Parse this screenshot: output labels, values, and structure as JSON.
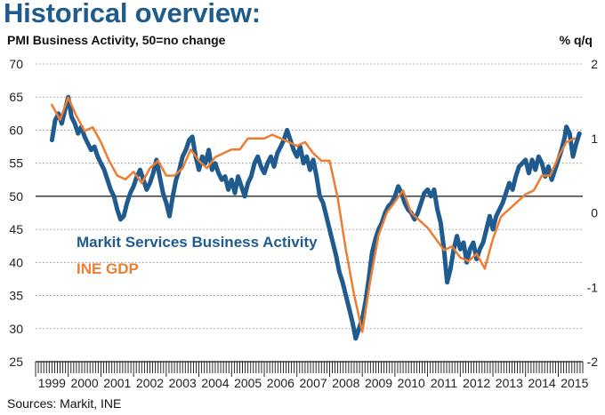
{
  "title": "Historical overview:",
  "subtitle": "PMI Business Activity, 50=no change",
  "right_axis_unit": "% q/q",
  "source": "Sources: Markit, INE",
  "colors": {
    "title": "#1f5b8e",
    "pmi": "#1f5b8e",
    "gdp": "#ed7d31"
  },
  "chart_data": {
    "type": "line",
    "title": "Historical overview:",
    "subtitle": "PMI Business Activity, 50=no change",
    "xlabel": "",
    "ylabel_left": "",
    "ylabel_right": "% q/q",
    "x_tick_labels": [
      "1999",
      "2000",
      "2001",
      "2002",
      "2003",
      "2004",
      "2005",
      "2006",
      "2007",
      "2008",
      "2009",
      "2010",
      "2011",
      "2012",
      "2013",
      "2014",
      "2015"
    ],
    "xlim": [
      1999.0,
      2015.75
    ],
    "ylim_left": [
      25,
      70
    ],
    "ylim_right": [
      -2,
      2
    ],
    "y_ticks_left": [
      25,
      30,
      35,
      40,
      45,
      50,
      55,
      60,
      65,
      70
    ],
    "y_ticks_right": [
      -2,
      -1,
      0,
      1,
      2
    ],
    "reference_line": {
      "axis": "left",
      "value": 50
    },
    "grid": "horizontal",
    "series": [
      {
        "name": "Markit Services Business Activity",
        "axis": "left",
        "points": [
          [
            1999.5,
            58.5
          ],
          [
            1999.6,
            61.5
          ],
          [
            1999.7,
            62.5
          ],
          [
            1999.8,
            61
          ],
          [
            1999.9,
            63
          ],
          [
            2000.0,
            65
          ],
          [
            2000.1,
            62
          ],
          [
            2000.2,
            61
          ],
          [
            2000.3,
            59.5
          ],
          [
            2000.4,
            60.5
          ],
          [
            2000.5,
            59
          ],
          [
            2000.6,
            58
          ],
          [
            2000.7,
            57
          ],
          [
            2000.8,
            57.5
          ],
          [
            2000.9,
            56
          ],
          [
            2001.0,
            55
          ],
          [
            2001.1,
            54
          ],
          [
            2001.2,
            52.5
          ],
          [
            2001.3,
            51
          ],
          [
            2001.4,
            50
          ],
          [
            2001.5,
            48
          ],
          [
            2001.6,
            46.5
          ],
          [
            2001.7,
            47
          ],
          [
            2001.8,
            49
          ],
          [
            2001.9,
            50.5
          ],
          [
            2002.0,
            51.5
          ],
          [
            2002.1,
            53
          ],
          [
            2002.2,
            54
          ],
          [
            2002.3,
            52.5
          ],
          [
            2002.4,
            51
          ],
          [
            2002.5,
            52
          ],
          [
            2002.6,
            53.5
          ],
          [
            2002.7,
            55.5
          ],
          [
            2002.8,
            53
          ],
          [
            2002.9,
            50.5
          ],
          [
            2003.0,
            49
          ],
          [
            2003.1,
            47
          ],
          [
            2003.2,
            50
          ],
          [
            2003.3,
            52.5
          ],
          [
            2003.4,
            54
          ],
          [
            2003.5,
            56
          ],
          [
            2003.6,
            57
          ],
          [
            2003.7,
            58.5
          ],
          [
            2003.8,
            59
          ],
          [
            2003.9,
            56
          ],
          [
            2004.0,
            54
          ],
          [
            2004.1,
            56
          ],
          [
            2004.2,
            55
          ],
          [
            2004.3,
            57
          ],
          [
            2004.4,
            54
          ],
          [
            2004.5,
            55
          ],
          [
            2004.6,
            53.5
          ],
          [
            2004.7,
            52.5
          ],
          [
            2004.8,
            53
          ],
          [
            2004.9,
            51
          ],
          [
            2005.0,
            52.5
          ],
          [
            2005.1,
            50.5
          ],
          [
            2005.2,
            53
          ],
          [
            2005.3,
            51.5
          ],
          [
            2005.4,
            50
          ],
          [
            2005.5,
            52
          ],
          [
            2005.6,
            53
          ],
          [
            2005.7,
            55
          ],
          [
            2005.8,
            56
          ],
          [
            2005.9,
            54.5
          ],
          [
            2006.0,
            53.5
          ],
          [
            2006.1,
            55
          ],
          [
            2006.2,
            56
          ],
          [
            2006.3,
            54.5
          ],
          [
            2006.4,
            56.5
          ],
          [
            2006.5,
            57.5
          ],
          [
            2006.6,
            58.5
          ],
          [
            2006.7,
            60
          ],
          [
            2006.8,
            58.5
          ],
          [
            2006.9,
            57
          ],
          [
            2007.0,
            56
          ],
          [
            2007.1,
            57.5
          ],
          [
            2007.2,
            55
          ],
          [
            2007.3,
            56
          ],
          [
            2007.4,
            54
          ],
          [
            2007.5,
            55.5
          ],
          [
            2007.6,
            53
          ],
          [
            2007.7,
            50
          ],
          [
            2007.8,
            49
          ],
          [
            2007.9,
            47
          ],
          [
            2008.0,
            45
          ],
          [
            2008.1,
            43
          ],
          [
            2008.2,
            41
          ],
          [
            2008.3,
            38.5
          ],
          [
            2008.4,
            37
          ],
          [
            2008.5,
            35
          ],
          [
            2008.6,
            33
          ],
          [
            2008.7,
            31
          ],
          [
            2008.8,
            28.5
          ],
          [
            2008.9,
            30
          ],
          [
            2009.0,
            31.5
          ],
          [
            2009.1,
            34
          ],
          [
            2009.2,
            37.5
          ],
          [
            2009.3,
            41.5
          ],
          [
            2009.4,
            43.5
          ],
          [
            2009.5,
            45
          ],
          [
            2009.6,
            46
          ],
          [
            2009.7,
            47.5
          ],
          [
            2009.8,
            48.5
          ],
          [
            2009.9,
            49
          ],
          [
            2010.0,
            50
          ],
          [
            2010.1,
            51.5
          ],
          [
            2010.2,
            50.5
          ],
          [
            2010.3,
            49
          ],
          [
            2010.4,
            48
          ],
          [
            2010.5,
            47.5
          ],
          [
            2010.6,
            46.5
          ],
          [
            2010.7,
            47.5
          ],
          [
            2010.8,
            49
          ],
          [
            2010.9,
            50.5
          ],
          [
            2011.0,
            51
          ],
          [
            2011.1,
            50
          ],
          [
            2011.2,
            51
          ],
          [
            2011.3,
            48
          ],
          [
            2011.4,
            46
          ],
          [
            2011.5,
            42
          ],
          [
            2011.6,
            37
          ],
          [
            2011.7,
            39
          ],
          [
            2011.8,
            42
          ],
          [
            2011.9,
            44
          ],
          [
            2012.0,
            42
          ],
          [
            2012.1,
            43
          ],
          [
            2012.2,
            40
          ],
          [
            2012.3,
            42
          ],
          [
            2012.4,
            43
          ],
          [
            2012.5,
            40.5
          ],
          [
            2012.6,
            42
          ],
          [
            2012.7,
            43
          ],
          [
            2012.8,
            45
          ],
          [
            2012.9,
            47
          ],
          [
            2013.0,
            45
          ],
          [
            2013.1,
            47
          ],
          [
            2013.2,
            48
          ],
          [
            2013.3,
            49
          ],
          [
            2013.4,
            50.5
          ],
          [
            2013.5,
            52
          ],
          [
            2013.6,
            51
          ],
          [
            2013.7,
            53
          ],
          [
            2013.8,
            54.5
          ],
          [
            2013.9,
            55
          ],
          [
            2014.0,
            55.5
          ],
          [
            2014.1,
            53.5
          ],
          [
            2014.2,
            55.5
          ],
          [
            2014.3,
            54
          ],
          [
            2014.4,
            56
          ],
          [
            2014.5,
            55
          ],
          [
            2014.6,
            53
          ],
          [
            2014.7,
            54.5
          ],
          [
            2014.8,
            52.5
          ],
          [
            2014.9,
            54
          ],
          [
            2015.0,
            55.5
          ],
          [
            2015.1,
            57
          ],
          [
            2015.2,
            59
          ],
          [
            2015.25,
            60.5
          ],
          [
            2015.35,
            59.5
          ],
          [
            2015.45,
            56
          ],
          [
            2015.55,
            58
          ],
          [
            2015.65,
            59.5
          ]
        ]
      },
      {
        "name": "INE GDP",
        "axis": "right",
        "points": [
          [
            1999.5,
            1.45
          ],
          [
            1999.75,
            1.25
          ],
          [
            2000.0,
            1.55
          ],
          [
            2000.25,
            1.3
          ],
          [
            2000.5,
            1.1
          ],
          [
            2000.75,
            1.15
          ],
          [
            2001.0,
            0.95
          ],
          [
            2001.25,
            0.7
          ],
          [
            2001.5,
            0.5
          ],
          [
            2001.75,
            0.45
          ],
          [
            2002.0,
            0.55
          ],
          [
            2002.25,
            0.4
          ],
          [
            2002.5,
            0.6
          ],
          [
            2002.75,
            0.7
          ],
          [
            2003.0,
            0.5
          ],
          [
            2003.25,
            0.5
          ],
          [
            2003.5,
            0.6
          ],
          [
            2003.75,
            0.85
          ],
          [
            2004.0,
            0.7
          ],
          [
            2004.25,
            0.6
          ],
          [
            2004.5,
            0.75
          ],
          [
            2004.75,
            0.8
          ],
          [
            2005.0,
            0.85
          ],
          [
            2005.25,
            0.85
          ],
          [
            2005.5,
            1.0
          ],
          [
            2005.75,
            1.0
          ],
          [
            2006.0,
            1.0
          ],
          [
            2006.25,
            1.05
          ],
          [
            2006.5,
            1.0
          ],
          [
            2006.75,
            0.95
          ],
          [
            2007.0,
            0.9
          ],
          [
            2007.25,
            0.95
          ],
          [
            2007.5,
            0.8
          ],
          [
            2007.75,
            0.7
          ],
          [
            2008.0,
            0.7
          ],
          [
            2008.25,
            0.2
          ],
          [
            2008.5,
            -0.5
          ],
          [
            2008.75,
            -1.1
          ],
          [
            2009.0,
            -1.6
          ],
          [
            2009.25,
            -0.9
          ],
          [
            2009.5,
            -0.3
          ],
          [
            2009.75,
            0.0
          ],
          [
            2010.0,
            0.15
          ],
          [
            2010.25,
            0.3
          ],
          [
            2010.5,
            0.0
          ],
          [
            2010.75,
            -0.1
          ],
          [
            2011.0,
            -0.2
          ],
          [
            2011.25,
            -0.35
          ],
          [
            2011.5,
            -0.5
          ],
          [
            2011.75,
            -0.45
          ],
          [
            2012.0,
            -0.6
          ],
          [
            2012.25,
            -0.65
          ],
          [
            2012.5,
            -0.55
          ],
          [
            2012.75,
            -0.75
          ],
          [
            2013.0,
            -0.35
          ],
          [
            2013.25,
            -0.05
          ],
          [
            2013.5,
            0.05
          ],
          [
            2013.75,
            0.15
          ],
          [
            2014.0,
            0.25
          ],
          [
            2014.25,
            0.3
          ],
          [
            2014.5,
            0.5
          ],
          [
            2014.75,
            0.5
          ],
          [
            2015.0,
            0.75
          ],
          [
            2015.25,
            0.95
          ],
          [
            2015.5,
            1.0
          ]
        ]
      }
    ]
  }
}
